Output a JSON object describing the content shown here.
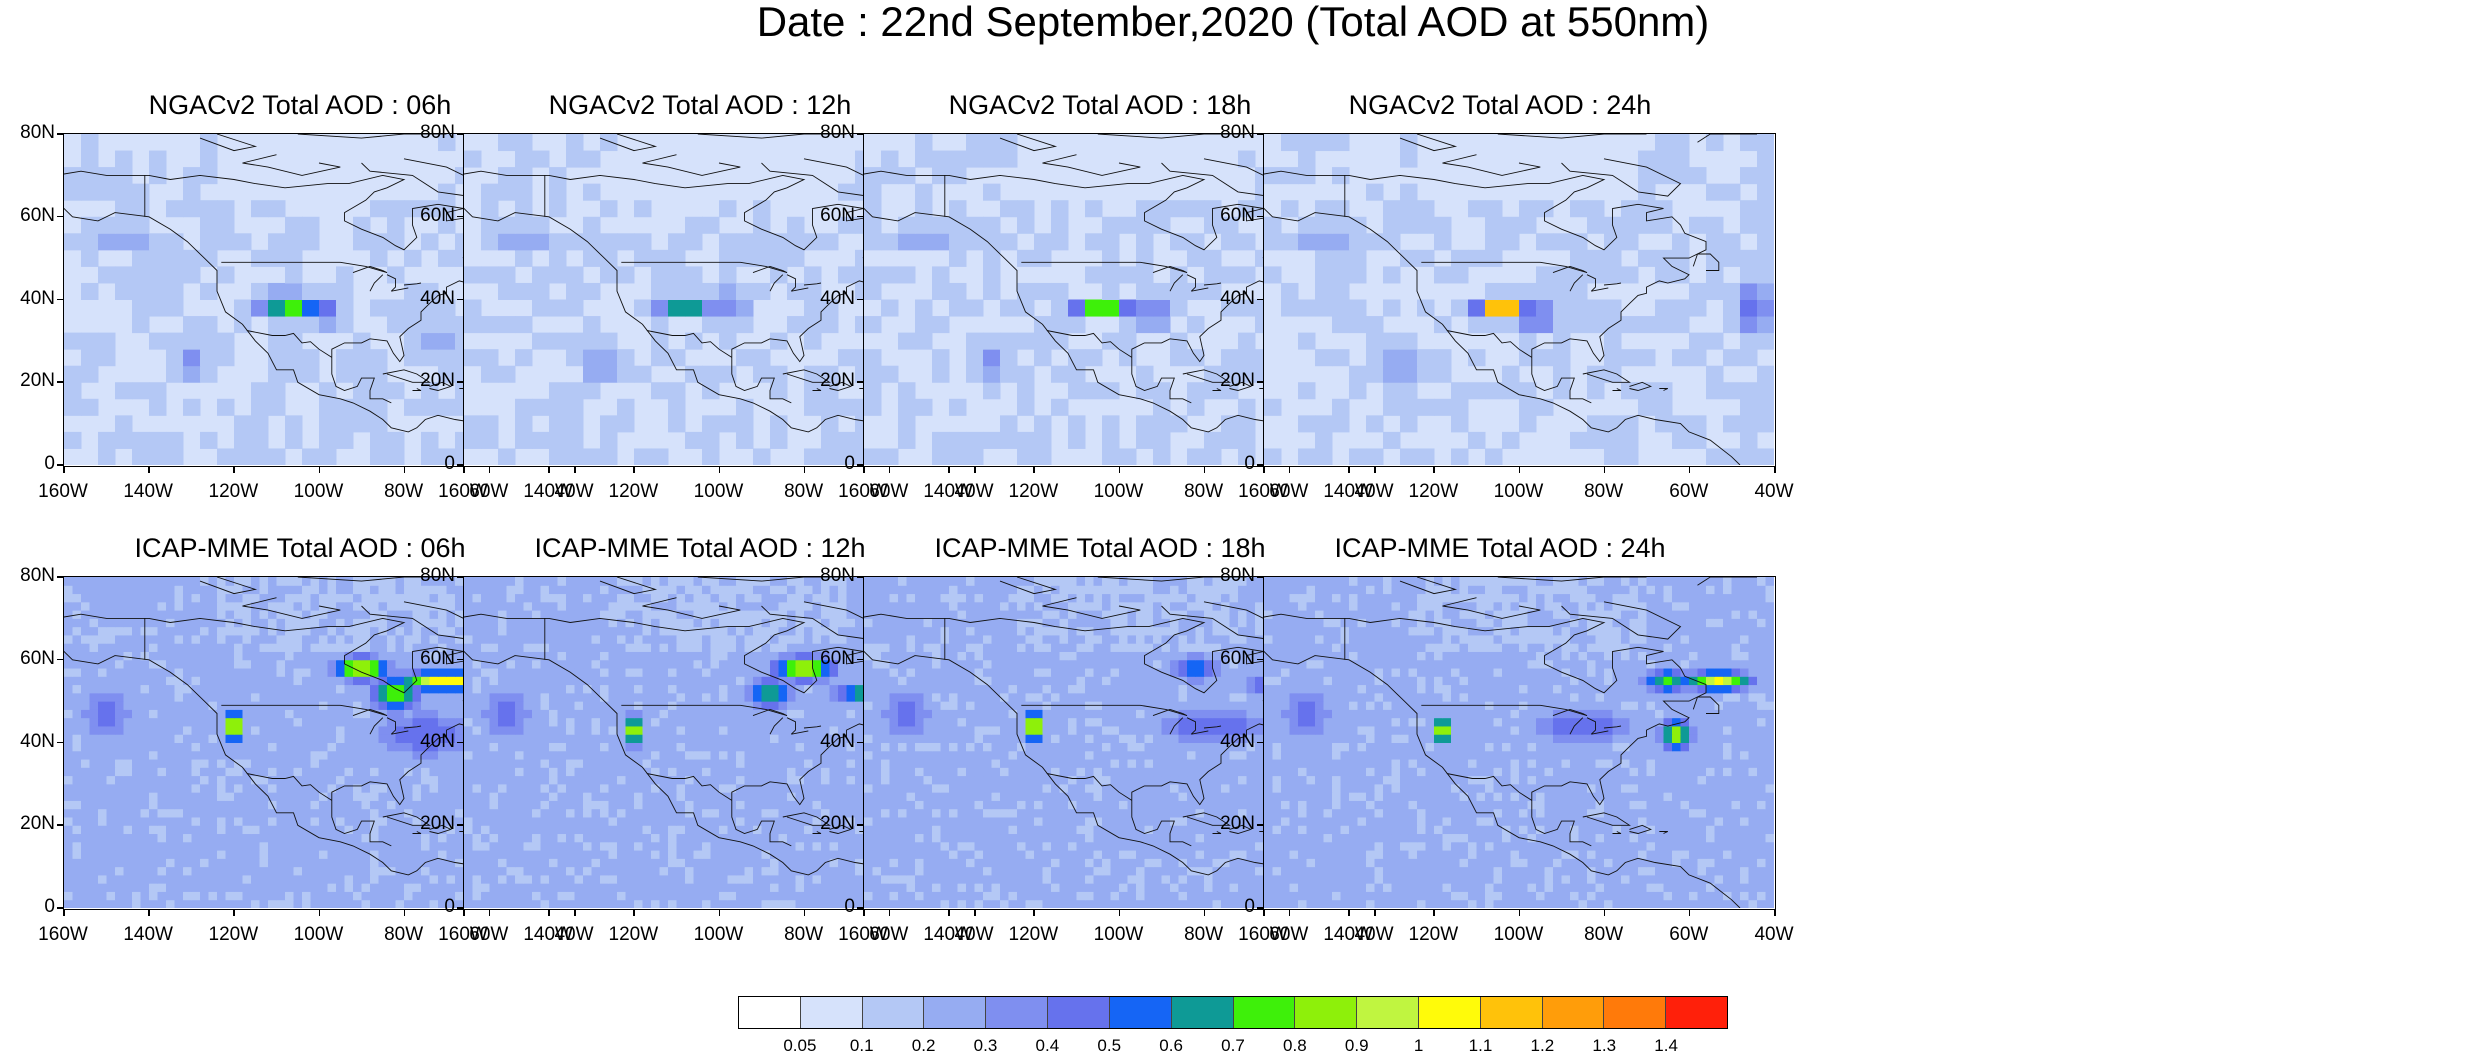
{
  "title": "Date : 22nd September,2020 (Total AOD at 550nm)",
  "panels": [
    {
      "title": "NGACv2 Total AOD : 06h",
      "model": "NGACv2",
      "hour": "06h"
    },
    {
      "title": "NGACv2 Total AOD : 12h",
      "model": "NGACv2",
      "hour": "12h"
    },
    {
      "title": "NGACv2 Total AOD : 18h",
      "model": "NGACv2",
      "hour": "18h"
    },
    {
      "title": "NGACv2 Total AOD : 24h",
      "model": "NGACv2",
      "hour": "24h"
    },
    {
      "title": "ICAP-MME Total AOD : 06h",
      "model": "ICAP-MME",
      "hour": "06h"
    },
    {
      "title": "ICAP-MME Total AOD : 12h",
      "model": "ICAP-MME",
      "hour": "12h"
    },
    {
      "title": "ICAP-MME Total AOD : 18h",
      "model": "ICAP-MME",
      "hour": "18h"
    },
    {
      "title": "ICAP-MME Total AOD : 24h",
      "model": "ICAP-MME",
      "hour": "24h"
    }
  ],
  "axes": {
    "lat_labels": [
      "80N",
      "60N",
      "40N",
      "20N",
      "0"
    ],
    "lon_labels": [
      "160W",
      "140W",
      "120W",
      "100W",
      "80W",
      "60W",
      "40W"
    ],
    "lat_range": [
      0,
      80
    ],
    "lon_range": [
      -160,
      -40
    ]
  },
  "colorbar": {
    "labels": [
      "0.05",
      "0.1",
      "0.2",
      "0.3",
      "0.4",
      "0.5",
      "0.6",
      "0.7",
      "0.8",
      "0.9",
      "1",
      "1.1",
      "1.2",
      "1.3",
      "1.4"
    ],
    "colors": [
      "#ffffff",
      "#d6e2fb",
      "#b4c8f5",
      "#96acf2",
      "#7f8ff0",
      "#6672ed",
      "#1565f5",
      "#0e9a96",
      "#3ef00a",
      "#8ef00a",
      "#c0f540",
      "#fffb0a",
      "#ffc20a",
      "#ff9d0a",
      "#ff7a0a",
      "#ff200a"
    ]
  },
  "aod_features": {
    "NGACv2": {
      "06h": [
        {
          "lon": -107,
          "lat": 39,
          "aod": 0.9,
          "w": 9,
          "h": 3
        },
        {
          "lon": -99,
          "lat": 37,
          "aod": 0.4,
          "w": 5,
          "h": 5
        },
        {
          "lon": -52,
          "lat": 35,
          "aod": 0.35,
          "w": 9,
          "h": 7
        },
        {
          "lon": -130,
          "lat": 25,
          "aod": 0.3,
          "w": 6,
          "h": 6
        },
        {
          "lon": -145,
          "lat": 55,
          "aod": 0.25,
          "w": 10,
          "h": 4
        },
        {
          "lon": -72,
          "lat": 30,
          "aod": 0.2,
          "w": 10,
          "h": 8
        }
      ],
      "12h": [
        {
          "lon": -108,
          "lat": 39,
          "aod": 0.8,
          "w": 8,
          "h": 3
        },
        {
          "lon": -97,
          "lat": 39,
          "aod": 0.4,
          "w": 5,
          "h": 4
        },
        {
          "lon": -47,
          "lat": 36,
          "aod": 0.35,
          "w": 7,
          "h": 8
        },
        {
          "lon": -128,
          "lat": 25,
          "aod": 0.3,
          "w": 6,
          "h": 6
        },
        {
          "lon": -145,
          "lat": 55,
          "aod": 0.25,
          "w": 10,
          "h": 4
        }
      ],
      "18h": [
        {
          "lon": -104,
          "lat": 38,
          "aod": 0.8,
          "w": 9,
          "h": 3
        },
        {
          "lon": -92,
          "lat": 37,
          "aod": 0.4,
          "w": 6,
          "h": 5
        },
        {
          "lon": -50,
          "lat": 35,
          "aod": 0.3,
          "w": 8,
          "h": 9
        },
        {
          "lon": -130,
          "lat": 25,
          "aod": 0.3,
          "w": 6,
          "h": 6
        },
        {
          "lon": -145,
          "lat": 55,
          "aod": 0.25,
          "w": 10,
          "h": 4
        }
      ],
      "24h": [
        {
          "lon": -104,
          "lat": 38,
          "aod": 1.3,
          "w": 7,
          "h": 3
        },
        {
          "lon": -92,
          "lat": 44,
          "aod": 0.8,
          "w": 4,
          "h": 2
        },
        {
          "lon": -96,
          "lat": 36,
          "aod": 0.5,
          "w": 6,
          "h": 5
        },
        {
          "lon": -45,
          "lat": 38,
          "aod": 0.4,
          "w": 6,
          "h": 8
        },
        {
          "lon": -128,
          "lat": 25,
          "aod": 0.3,
          "w": 6,
          "h": 6
        },
        {
          "lon": -145,
          "lat": 55,
          "aod": 0.25,
          "w": 10,
          "h": 4
        }
      ]
    },
    "ICAP-MME": {
      "06h": [
        {
          "lon": -90,
          "lat": 58,
          "aod": 0.9,
          "w": 8,
          "h": 4
        },
        {
          "lon": -70,
          "lat": 55,
          "aod": 1.0,
          "w": 14,
          "h": 3
        },
        {
          "lon": -82,
          "lat": 52,
          "aod": 0.7,
          "w": 8,
          "h": 6
        },
        {
          "lon": -120,
          "lat": 44,
          "aod": 0.9,
          "w": 3,
          "h": 5
        },
        {
          "lon": -60,
          "lat": 37,
          "aod": 0.8,
          "w": 5,
          "h": 5
        },
        {
          "lon": -150,
          "lat": 47,
          "aod": 0.35,
          "w": 9,
          "h": 9
        },
        {
          "lon": -75,
          "lat": 42,
          "aod": 0.4,
          "w": 18,
          "h": 8
        },
        {
          "lon": -45,
          "lat": 25,
          "aod": 0.35,
          "w": 6,
          "h": 6
        }
      ],
      "12h": [
        {
          "lon": -80,
          "lat": 58,
          "aod": 0.8,
          "w": 10,
          "h": 4
        },
        {
          "lon": -60,
          "lat": 52,
          "aod": 0.9,
          "w": 15,
          "h": 3
        },
        {
          "lon": -88,
          "lat": 52,
          "aod": 0.6,
          "w": 7,
          "h": 6
        },
        {
          "lon": -120,
          "lat": 43,
          "aod": 0.9,
          "w": 3,
          "h": 5
        },
        {
          "lon": -60,
          "lat": 39,
          "aod": 0.8,
          "w": 5,
          "h": 5
        },
        {
          "lon": -150,
          "lat": 47,
          "aod": 0.35,
          "w": 9,
          "h": 9
        },
        {
          "lon": -45,
          "lat": 25,
          "aod": 0.35,
          "w": 6,
          "h": 6
        }
      ],
      "18h": [
        {
          "lon": -58,
          "lat": 54,
          "aod": 0.9,
          "w": 12,
          "h": 4
        },
        {
          "lon": -82,
          "lat": 58,
          "aod": 0.55,
          "w": 8,
          "h": 4
        },
        {
          "lon": -120,
          "lat": 44,
          "aod": 0.9,
          "w": 3,
          "h": 5
        },
        {
          "lon": -63,
          "lat": 38,
          "aod": 0.5,
          "w": 5,
          "h": 8
        },
        {
          "lon": -150,
          "lat": 47,
          "aod": 0.35,
          "w": 9,
          "h": 9
        },
        {
          "lon": -78,
          "lat": 44,
          "aod": 0.4,
          "w": 18,
          "h": 6
        }
      ],
      "24h": [
        {
          "lon": -53,
          "lat": 55,
          "aod": 0.9,
          "w": 10,
          "h": 3
        },
        {
          "lon": -65,
          "lat": 55,
          "aod": 0.6,
          "w": 8,
          "h": 4
        },
        {
          "lon": -118,
          "lat": 43,
          "aod": 0.9,
          "w": 3,
          "h": 4
        },
        {
          "lon": -63,
          "lat": 42,
          "aod": 0.8,
          "w": 5,
          "h": 5
        },
        {
          "lon": -150,
          "lat": 47,
          "aod": 0.35,
          "w": 9,
          "h": 9
        },
        {
          "lon": -85,
          "lat": 44,
          "aod": 0.4,
          "w": 16,
          "h": 6
        }
      ]
    }
  }
}
